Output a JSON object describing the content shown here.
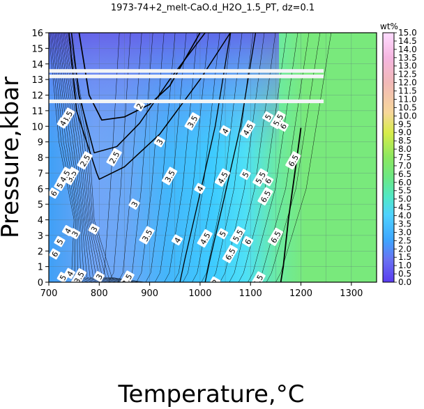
{
  "chart_data": {
    "type": "heatmap",
    "title": "1973-74+2_melt-CaO.d_H2O_1.5_PT, dz=0.1",
    "xlabel": "Temperature,°C",
    "ylabel": "Pressure,kbar",
    "xlim": [
      700,
      1350
    ],
    "ylim": [
      0,
      16
    ],
    "x_ticks": [
      "700",
      "800",
      "900",
      "1000",
      "1100",
      "1200",
      "1300"
    ],
    "y_ticks": [
      "0",
      "1",
      "2",
      "3",
      "4",
      "5",
      "6",
      "7",
      "8",
      "9",
      "10",
      "11",
      "12",
      "13",
      "14",
      "15",
      "16"
    ],
    "grid": true,
    "colorbar": {
      "title": "wt%",
      "range": [
        0.0,
        15.0
      ],
      "ticks": [
        "0.0",
        "0.5",
        "1.0",
        "1.5",
        "2.0",
        "2.5",
        "3.0",
        "3.5",
        "4.0",
        "4.5",
        "5.0",
        "5.5",
        "6.0",
        "6.5",
        "7.0",
        "7.5",
        "8.0",
        "8.5",
        "9.0",
        "9.5",
        "10.0",
        "10.5",
        "11.0",
        "11.5",
        "12.0",
        "12.5",
        "13.0",
        "13.5",
        "14.0",
        "14.5",
        "15.0"
      ]
    },
    "plateau_value": 7.0,
    "missing_bands_kbar": [
      [
        11.55,
        11.65
      ],
      [
        13.15,
        13.25
      ],
      [
        13.5,
        13.6
      ]
    ],
    "contour_labels": [
      {
        "text": "2",
        "T": 1030,
        "P": 0
      },
      {
        "text": "2",
        "T": 880,
        "P": 11.3
      },
      {
        "text": "2.5",
        "T": 830,
        "P": 8.0
      },
      {
        "text": "2.5",
        "T": 772,
        "P": 7.8
      },
      {
        "text": "3",
        "T": 920,
        "P": 9.0
      },
      {
        "text": "3",
        "T": 870,
        "P": 5.0
      },
      {
        "text": "3",
        "T": 790,
        "P": 3.4
      },
      {
        "text": "3",
        "T": 800,
        "P": 0.35
      },
      {
        "text": "3.5",
        "T": 985,
        "P": 10.3
      },
      {
        "text": "3.5",
        "T": 940,
        "P": 6.8
      },
      {
        "text": "3.5",
        "T": 895,
        "P": 3.0
      },
      {
        "text": "3.5",
        "T": 760,
        "P": 0.3
      },
      {
        "text": "3.5",
        "T": 855,
        "P": 0.15
      },
      {
        "text": "4",
        "T": 1050,
        "P": 9.7
      },
      {
        "text": "4",
        "T": 1000,
        "P": 6.0
      },
      {
        "text": "4",
        "T": 955,
        "P": 2.7
      },
      {
        "text": "4.5",
        "T": 1095,
        "P": 9.8
      },
      {
        "text": "4.5",
        "T": 1045,
        "P": 6.7
      },
      {
        "text": "4.5",
        "T": 1010,
        "P": 2.8
      },
      {
        "text": "5",
        "T": 1135,
        "P": 10.6
      },
      {
        "text": "5",
        "T": 1090,
        "P": 6.9
      },
      {
        "text": "5",
        "T": 1045,
        "P": 3.1
      },
      {
        "text": "5.5",
        "T": 1155,
        "P": 10.4
      },
      {
        "text": "5.5",
        "T": 1120,
        "P": 6.7
      },
      {
        "text": "5.5",
        "T": 1075,
        "P": 3.0
      },
      {
        "text": "6",
        "T": 1165,
        "P": 10.0
      },
      {
        "text": "6",
        "T": 1135,
        "P": 6.5
      },
      {
        "text": "6",
        "T": 1095,
        "P": 2.6
      },
      {
        "text": "6.5",
        "T": 1185,
        "P": 7.8
      },
      {
        "text": "6.5",
        "T": 1130,
        "P": 5.5
      },
      {
        "text": "6.5",
        "T": 1150,
        "P": 2.9
      },
      {
        "text": "6.5",
        "T": 1060,
        "P": 1.8
      },
      {
        "text": "6.5",
        "T": 1115,
        "P": 0.1
      }
    ],
    "edge_labels": [
      {
        "text": "3.5",
        "T": 737,
        "P": 10.6
      },
      {
        "text": "4",
        "T": 728,
        "P": 10.2
      },
      {
        "text": "3.5",
        "T": 745,
        "P": 6.8
      },
      {
        "text": "4.5",
        "T": 732,
        "P": 6.8
      },
      {
        "text": "5",
        "T": 722,
        "P": 6.2
      },
      {
        "text": "6",
        "T": 710,
        "P": 5.7
      },
      {
        "text": "4",
        "T": 738,
        "P": 3.3
      },
      {
        "text": "3",
        "T": 752,
        "P": 3.1
      },
      {
        "text": "5",
        "T": 722,
        "P": 2.6
      },
      {
        "text": "6",
        "T": 712,
        "P": 1.8
      },
      {
        "text": "4",
        "T": 742,
        "P": 0.55
      },
      {
        "text": "5",
        "T": 728,
        "P": 0.3
      }
    ]
  }
}
